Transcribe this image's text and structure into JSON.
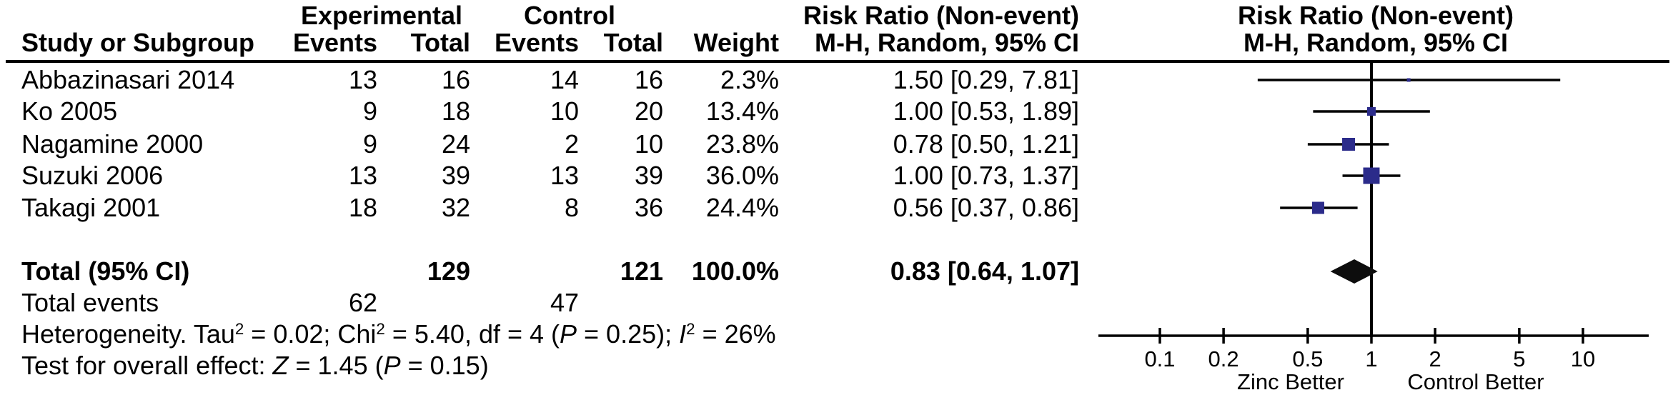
{
  "table": {
    "group_headers": {
      "experimental": "Experimental",
      "control": "Control",
      "risk_ratio_left": "Risk Ratio (Non-event)",
      "risk_ratio_right": "Risk Ratio (Non-event)"
    },
    "col_headers": {
      "study": "Study or Subgroup",
      "exp_events": "Events",
      "exp_total": "Total",
      "ctrl_events": "Events",
      "ctrl_total": "Total",
      "weight": "Weight",
      "mh_left": "M-H, Random, 95% CI",
      "mh_right": "M-H, Random, 95% CI"
    },
    "rows": [
      {
        "study": "Abbazinasari 2014",
        "exp_events": "13",
        "exp_total": "16",
        "ctrl_events": "14",
        "ctrl_total": "16",
        "weight": "2.3%",
        "ci_text": "1.50 [0.29, 7.81]"
      },
      {
        "study": "Ko 2005",
        "exp_events": "9",
        "exp_total": "18",
        "ctrl_events": "10",
        "ctrl_total": "20",
        "weight": "13.4%",
        "ci_text": "1.00 [0.53, 1.89]"
      },
      {
        "study": "Nagamine 2000",
        "exp_events": "9",
        "exp_total": "24",
        "ctrl_events": "2",
        "ctrl_total": "10",
        "weight": "23.8%",
        "ci_text": "0.78 [0.50, 1.21]"
      },
      {
        "study": "Suzuki 2006",
        "exp_events": "13",
        "exp_total": "39",
        "ctrl_events": "13",
        "ctrl_total": "39",
        "weight": "36.0%",
        "ci_text": "1.00 [0.73, 1.37]"
      },
      {
        "study": "Takagi 2001",
        "exp_events": "18",
        "exp_total": "32",
        "ctrl_events": "8",
        "ctrl_total": "36",
        "weight": "24.4%",
        "ci_text": "0.56 [0.37, 0.86]"
      }
    ],
    "total_row": {
      "label": "Total (95% CI)",
      "exp_total": "129",
      "ctrl_total": "121",
      "weight": "100.0%",
      "ci_text": "0.83 [0.64, 1.07]"
    },
    "total_events": {
      "label": "Total events",
      "exp": "62",
      "ctrl": "47"
    },
    "stats_lines": [
      {
        "segments": [
          {
            "text": "Heterogeneity. Tau"
          },
          {
            "text": "2",
            "sup": true
          },
          {
            "text": " = 0.02; Chi"
          },
          {
            "text": "2",
            "sup": true
          },
          {
            "text": " = 5.40, df = 4 ("
          },
          {
            "text": "P",
            "italic": true
          },
          {
            "text": " = 0.25); "
          },
          {
            "text": "I",
            "italic": true
          },
          {
            "text": "2",
            "sup": true
          },
          {
            "text": " = 26%"
          }
        ]
      },
      {
        "segments": [
          {
            "text": "Test for overall effect: "
          },
          {
            "text": "Z",
            "italic": true
          },
          {
            "text": " = 1.45 ("
          },
          {
            "text": "P",
            "italic": true
          },
          {
            "text": " = 0.15)"
          }
        ]
      }
    ]
  },
  "chart_data": {
    "type": "forest",
    "effect_measure": "Risk Ratio (Non-event), M-H, Random, 95% CI",
    "scale": "log10",
    "x_ticks": [
      0.1,
      0.2,
      0.5,
      1,
      2,
      5,
      10
    ],
    "x_tick_labels": [
      "0.1",
      "0.2",
      "0.5",
      "1",
      "2",
      "5",
      "10"
    ],
    "x_axis_range": [
      0.05,
      20.5
    ],
    "footer_left": "Zinc Better",
    "footer_right": "Control Better",
    "studies": [
      {
        "name": "Abbazinasari 2014",
        "rr": 1.5,
        "ci_low": 0.29,
        "ci_high": 7.81,
        "weight_pct": 2.3,
        "square_size": 5
      },
      {
        "name": "Ko 2005",
        "rr": 1.0,
        "ci_low": 0.53,
        "ci_high": 1.89,
        "weight_pct": 13.4,
        "square_size": 12
      },
      {
        "name": "Nagamine 2000",
        "rr": 0.78,
        "ci_low": 0.5,
        "ci_high": 1.21,
        "weight_pct": 23.8,
        "square_size": 18
      },
      {
        "name": "Suzuki 2006",
        "rr": 1.0,
        "ci_low": 0.73,
        "ci_high": 1.37,
        "weight_pct": 36.0,
        "square_size": 23
      },
      {
        "name": "Takagi 2001",
        "rr": 0.56,
        "ci_low": 0.37,
        "ci_high": 0.86,
        "weight_pct": 24.4,
        "square_size": 17
      }
    ],
    "overall": {
      "rr": 0.83,
      "ci_low": 0.64,
      "ci_high": 1.07,
      "weight_pct": 100.0
    },
    "colors": {
      "square": "#2b2b8a",
      "diamond": "#0d0d0d",
      "line": "#000000",
      "text": "#000000"
    }
  }
}
